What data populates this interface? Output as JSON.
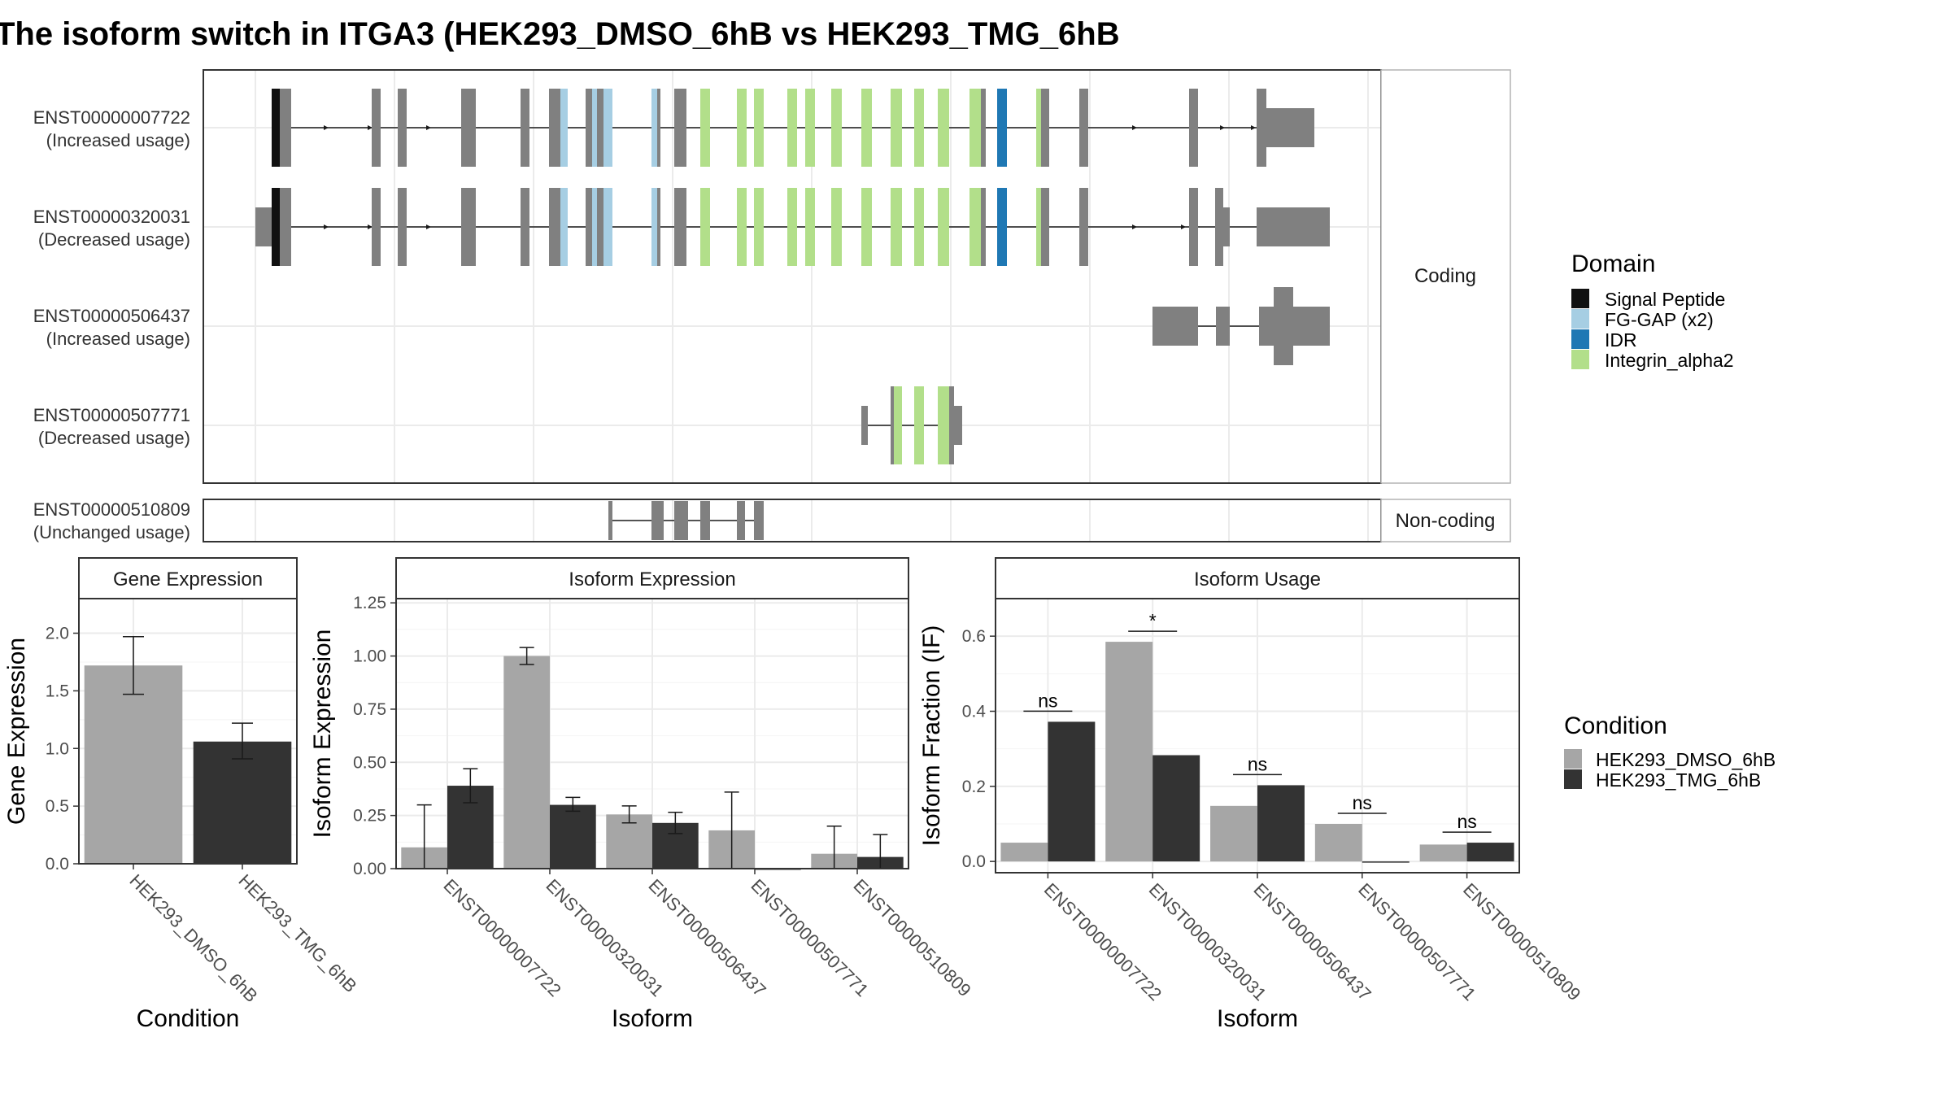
{
  "title": "The isoform switch in ITGA3 (HEK293_DMSO_6hB vs HEK293_TMG_6hB",
  "colors": {
    "signal_peptide": "#111111",
    "fg_gap": "#a6cee3",
    "idr": "#1f78b4",
    "integrin_alpha2": "#b2df8a",
    "exon": "#808080",
    "dmso": "#a6a6a6",
    "tmg": "#333333",
    "grid": "#ebebeb",
    "panel_border": "#333333",
    "strip_border": "#b3b3b3"
  },
  "transcripts": {
    "coding_strip": "Coding",
    "noncoding_strip": "Non-coding",
    "coding": [
      {
        "id": "ENST00000007722",
        "status": "(Increased usage)"
      },
      {
        "id": "ENST00000320031",
        "status": "(Decreased usage)"
      },
      {
        "id": "ENST00000506437",
        "status": "(Increased usage)"
      },
      {
        "id": "ENST00000507771",
        "status": "(Decreased usage)"
      }
    ],
    "noncoding": [
      {
        "id": "ENST00000510809",
        "status": "(Unchanged usage)"
      }
    ]
  },
  "legends": {
    "domain_title": "Domain",
    "domains": [
      {
        "name": "Signal Peptide",
        "color_key": "signal_peptide"
      },
      {
        "name": "FG-GAP (x2)",
        "color_key": "fg_gap"
      },
      {
        "name": "IDR",
        "color_key": "idr"
      },
      {
        "name": "Integrin_alpha2",
        "color_key": "integrin_alpha2"
      }
    ],
    "condition_title": "Condition",
    "conditions": [
      {
        "name": "HEK293_DMSO_6hB",
        "color_key": "dmso"
      },
      {
        "name": "HEK293_TMG_6hB",
        "color_key": "tmg"
      }
    ]
  },
  "chart_data": [
    {
      "type": "bar",
      "title": "Gene Expression",
      "xlabel": "Condition",
      "ylabel": "Gene Expression",
      "ylim": [
        0,
        2.3
      ],
      "yticks": [
        "0.0",
        "0.5",
        "1.0",
        "1.5",
        "2.0"
      ],
      "ytick_values": [
        0,
        0.5,
        1.0,
        1.5,
        2.0
      ],
      "categories": [
        "HEK293_DMSO_6hB",
        "HEK293_TMG_6hB"
      ],
      "values": [
        1.72,
        1.06
      ],
      "err_low": [
        1.47,
        0.91
      ],
      "err_high": [
        1.97,
        1.22
      ],
      "grid": true
    },
    {
      "type": "bar",
      "title": "Isoform Expression",
      "xlabel": "Isoform",
      "ylabel": "Isoform Expression",
      "ylim": [
        0,
        1.27
      ],
      "yticks": [
        "0.00",
        "0.25",
        "0.50",
        "0.75",
        "1.00",
        "1.25"
      ],
      "ytick_values": [
        0,
        0.25,
        0.5,
        0.75,
        1.0,
        1.25
      ],
      "categories": [
        "ENST00000007722",
        "ENST00000320031",
        "ENST00000506437",
        "ENST00000507771",
        "ENST00000510809"
      ],
      "series": [
        {
          "name": "HEK293_DMSO_6hB",
          "values": [
            0.1,
            1.0,
            0.255,
            0.18,
            0.07
          ],
          "err_low": [
            0.0,
            0.96,
            0.215,
            0.0,
            0.0
          ],
          "err_high": [
            0.3,
            1.04,
            0.295,
            0.36,
            0.2
          ]
        },
        {
          "name": "HEK293_TMG_6hB",
          "values": [
            0.39,
            0.3,
            0.215,
            0.0,
            0.055
          ],
          "err_low": [
            0.31,
            0.27,
            0.165,
            0.0,
            0.0
          ],
          "err_high": [
            0.47,
            0.335,
            0.265,
            0.0,
            0.16
          ]
        }
      ],
      "grid": true
    },
    {
      "type": "bar",
      "title": "Isoform Usage",
      "xlabel": "Isoform",
      "ylabel": "Isoform Fraction (IF)",
      "ylim": [
        -0.03,
        0.7
      ],
      "yticks": [
        "0.0",
        "0.2",
        "0.4",
        "0.6"
      ],
      "ytick_values": [
        0,
        0.2,
        0.4,
        0.6
      ],
      "categories": [
        "ENST00000007722",
        "ENST00000320031",
        "ENST00000506437",
        "ENST00000507771",
        "ENST00000510809"
      ],
      "series": [
        {
          "name": "HEK293_DMSO_6hB",
          "values": [
            0.05,
            0.585,
            0.148,
            0.1,
            0.045
          ]
        },
        {
          "name": "HEK293_TMG_6hB",
          "values": [
            0.372,
            0.283,
            0.203,
            0.0,
            0.05
          ]
        }
      ],
      "significance": [
        "ns",
        "*",
        "ns",
        "ns",
        "ns"
      ],
      "grid": true
    }
  ]
}
